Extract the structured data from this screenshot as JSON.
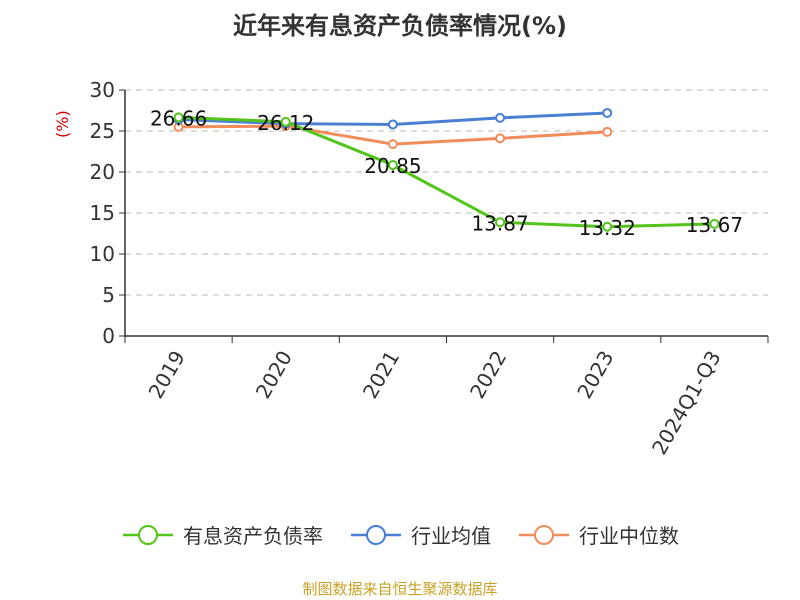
{
  "title": "近年来有息资产负债率情况(%)",
  "source": "制图数据来自恒生聚源数据库",
  "chart_data": {
    "type": "line",
    "title": "近年来有息资产负债率情况(%)",
    "ylabel": "(%)",
    "xlabel": "",
    "ylim": [
      0,
      30
    ],
    "yticks": [
      0,
      5,
      10,
      15,
      20,
      25,
      30
    ],
    "categories": [
      "2019",
      "2020",
      "2021",
      "2022",
      "2023",
      "2024Q1-Q3"
    ],
    "grid": true,
    "legend_position": "bottom",
    "series": [
      {
        "name": "有息资产负债率",
        "color": "#52c41a",
        "values": [
          26.66,
          26.12,
          20.85,
          13.87,
          13.32,
          13.67
        ],
        "labels": [
          "26.66",
          "26.12",
          "20.85",
          "13.87",
          "13.32",
          "13.67"
        ]
      },
      {
        "name": "行业均值",
        "color": "#4a7fd4",
        "values": [
          26.4,
          25.9,
          25.8,
          26.6,
          27.2,
          null
        ]
      },
      {
        "name": "行业中位数",
        "color": "#f28c5a",
        "values": [
          25.5,
          25.6,
          23.4,
          24.1,
          24.9,
          null
        ]
      }
    ]
  }
}
